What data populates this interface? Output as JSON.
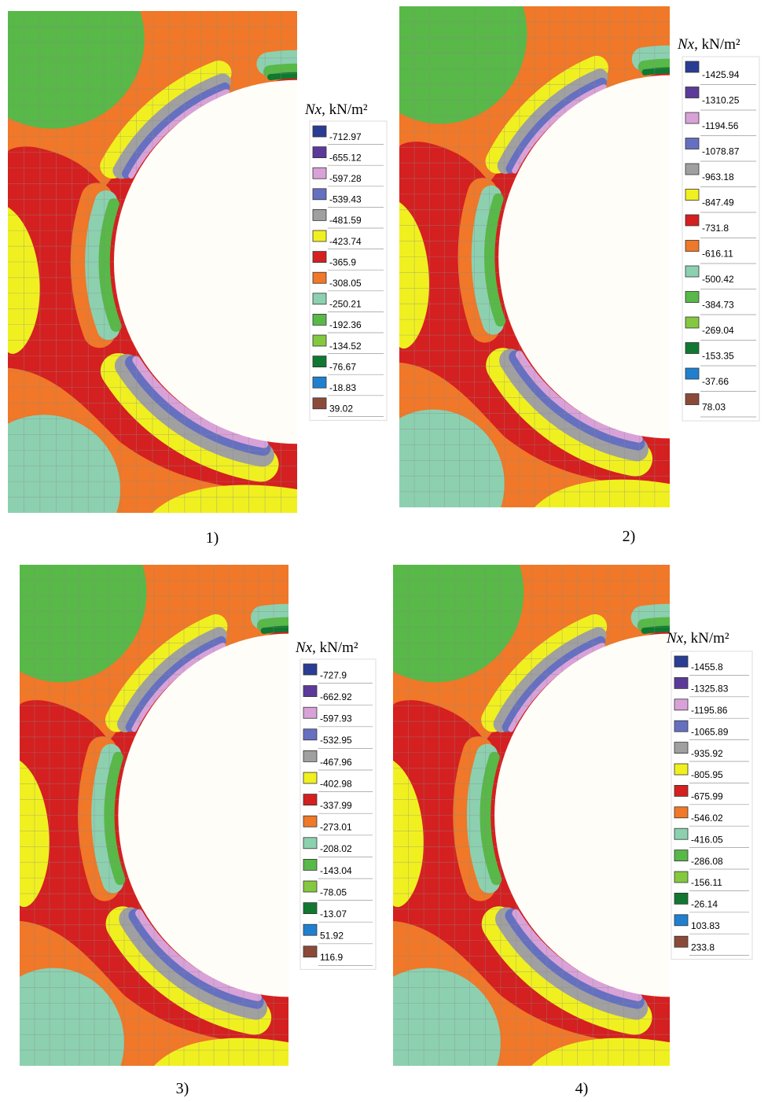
{
  "panels": [
    {
      "legend": {
        "symbol": "Nx",
        "unit": ", kN/m²",
        "items": [
          {
            "label": "-712.97",
            "color": "#2a3d94"
          },
          {
            "label": "-655.12",
            "color": "#5b3a9a"
          },
          {
            "label": "-597.28",
            "color": "#d8a2d8"
          },
          {
            "label": "-539.43",
            "color": "#6670c0"
          },
          {
            "label": "-481.59",
            "color": "#a0a0a0"
          },
          {
            "label": "-423.74",
            "color": "#f0f020"
          },
          {
            "label": "-365.9",
            "color": "#d42020"
          },
          {
            "label": "-308.05",
            "color": "#f07828"
          },
          {
            "label": "-250.21",
            "color": "#8cd0b0"
          },
          {
            "label": "-192.36",
            "color": "#58b848"
          },
          {
            "label": "-134.52",
            "color": "#84c840"
          },
          {
            "label": "-76.67",
            "color": "#107830"
          },
          {
            "label": "-18.83",
            "color": "#2080d0"
          },
          {
            "label": "39.02",
            "color": "#8b4a38"
          }
        ]
      },
      "caption": "1)"
    },
    {
      "legend": {
        "symbol": "Nx",
        "unit": ", kN/m²",
        "items": [
          {
            "label": "-1425.94",
            "color": "#2a3d94"
          },
          {
            "label": "-1310.25",
            "color": "#5b3a9a"
          },
          {
            "label": "-1194.56",
            "color": "#d8a2d8"
          },
          {
            "label": "-1078.87",
            "color": "#6670c0"
          },
          {
            "label": "-963.18",
            "color": "#a0a0a0"
          },
          {
            "label": "-847.49",
            "color": "#f0f020"
          },
          {
            "label": "-731.8",
            "color": "#d42020"
          },
          {
            "label": "-616.11",
            "color": "#f07828"
          },
          {
            "label": "-500.42",
            "color": "#8cd0b0"
          },
          {
            "label": "-384.73",
            "color": "#58b848"
          },
          {
            "label": "-269.04",
            "color": "#84c840"
          },
          {
            "label": "-153.35",
            "color": "#107830"
          },
          {
            "label": "-37.66",
            "color": "#2080d0"
          },
          {
            "label": "78.03",
            "color": "#8b4a38"
          }
        ]
      },
      "caption": "2)"
    },
    {
      "legend": {
        "symbol": "Nx",
        "unit": ", kN/m²",
        "items": [
          {
            "label": "-727.9",
            "color": "#2a3d94"
          },
          {
            "label": "-662.92",
            "color": "#5b3a9a"
          },
          {
            "label": "-597.93",
            "color": "#d8a2d8"
          },
          {
            "label": "-532.95",
            "color": "#6670c0"
          },
          {
            "label": "-467.96",
            "color": "#a0a0a0"
          },
          {
            "label": "-402.98",
            "color": "#f0f020"
          },
          {
            "label": "-337.99",
            "color": "#d42020"
          },
          {
            "label": "-273.01",
            "color": "#f07828"
          },
          {
            "label": "-208.02",
            "color": "#8cd0b0"
          },
          {
            "label": "-143.04",
            "color": "#58b848"
          },
          {
            "label": "-78.05",
            "color": "#84c840"
          },
          {
            "label": "-13.07",
            "color": "#107830"
          },
          {
            "label": "51.92",
            "color": "#2080d0"
          },
          {
            "label": "116.9",
            "color": "#8b4a38"
          }
        ]
      },
      "caption": "3)"
    },
    {
      "legend": {
        "symbol": "Nx",
        "unit": ", kN/m²",
        "items": [
          {
            "label": "-1455.8",
            "color": "#2a3d94"
          },
          {
            "label": "-1325.83",
            "color": "#5b3a9a"
          },
          {
            "label": "-1195.86",
            "color": "#d8a2d8"
          },
          {
            "label": "-1065.89",
            "color": "#6670c0"
          },
          {
            "label": "-935.92",
            "color": "#a0a0a0"
          },
          {
            "label": "-805.95",
            "color": "#f0f020"
          },
          {
            "label": "-675.99",
            "color": "#d42020"
          },
          {
            "label": "-546.02",
            "color": "#f07828"
          },
          {
            "label": "-416.05",
            "color": "#8cd0b0"
          },
          {
            "label": "-286.08",
            "color": "#58b848"
          },
          {
            "label": "-156.11",
            "color": "#84c840"
          },
          {
            "label": "-26.14",
            "color": "#107830"
          },
          {
            "label": "103.83",
            "color": "#2080d0"
          },
          {
            "label": "233.8",
            "color": "#8b4a38"
          }
        ]
      },
      "caption": "4)"
    }
  ]
}
